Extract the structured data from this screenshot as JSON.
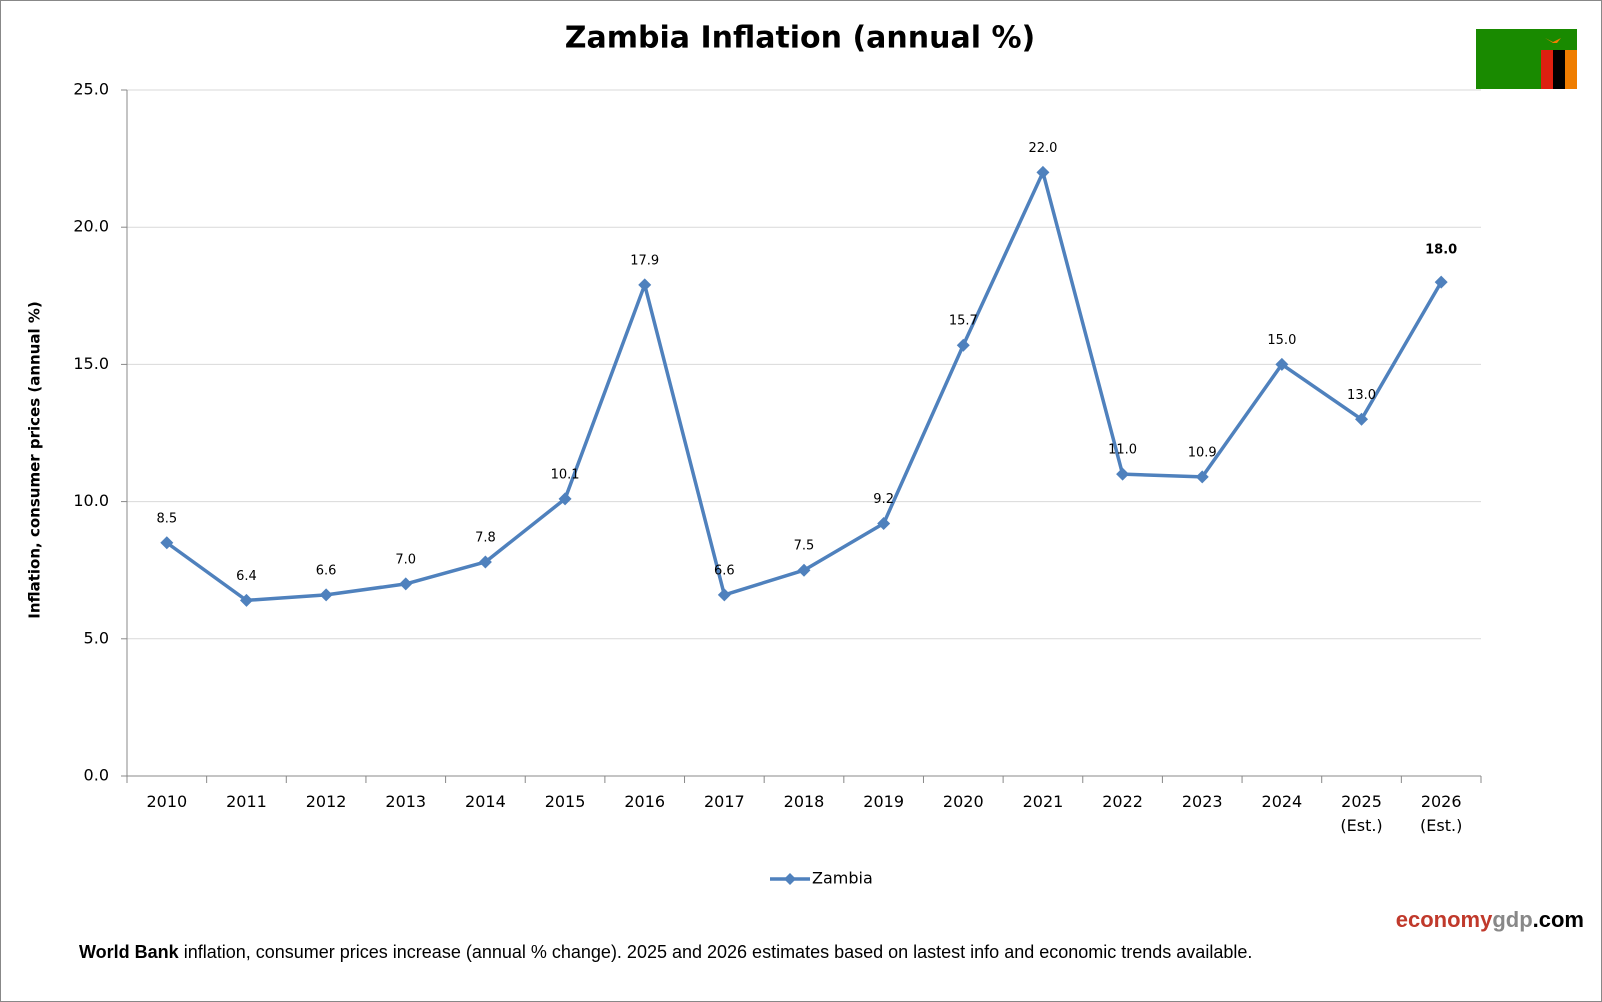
{
  "chart_data": {
    "type": "line",
    "title": "Zambia Inflation (annual %)",
    "y_label": "Inflation, consumer prices (annual %)",
    "categories": [
      "2010",
      "2011",
      "2012",
      "2013",
      "2014",
      "2015",
      "2016",
      "2017",
      "2018",
      "2019",
      "2020",
      "2021",
      "2022",
      "2023",
      "2024",
      "2025 (Est.)",
      "2026 (Est.)"
    ],
    "series": [
      {
        "name": "Zambia",
        "color": "#4f81bd",
        "values": [
          8.5,
          6.4,
          6.6,
          7.0,
          7.8,
          10.1,
          17.9,
          6.6,
          7.5,
          9.2,
          15.7,
          22.0,
          11.0,
          10.9,
          15.0,
          13.0,
          18.0
        ],
        "value_labels": [
          "8.5",
          "6.4",
          "6.6",
          "7.0",
          "7.8",
          "10.1",
          "17.9",
          "6.6",
          "7.5",
          "9.2",
          "15.7",
          "22.0",
          "11.0",
          "10.9",
          "15.0",
          "13.0",
          "18.0"
        ]
      }
    ],
    "ylim": [
      0,
      25
    ],
    "yticks": [
      {
        "value": 0,
        "label": "0.0"
      },
      {
        "value": 5,
        "label": "5.0"
      },
      {
        "value": 10,
        "label": "10.0"
      },
      {
        "value": 15,
        "label": "15.0"
      },
      {
        "value": 20,
        "label": "20.0"
      },
      {
        "value": 25,
        "label": "25.0"
      }
    ],
    "grid": true,
    "legend": "bottom",
    "watermark": [
      "economy",
      "gdp",
      ".com"
    ],
    "source_bold": "World Bank",
    "source_note": "inflation, consumer prices increase (annual % change).  2025 and 2026 estimates based on lastest info and economic trends available."
  }
}
